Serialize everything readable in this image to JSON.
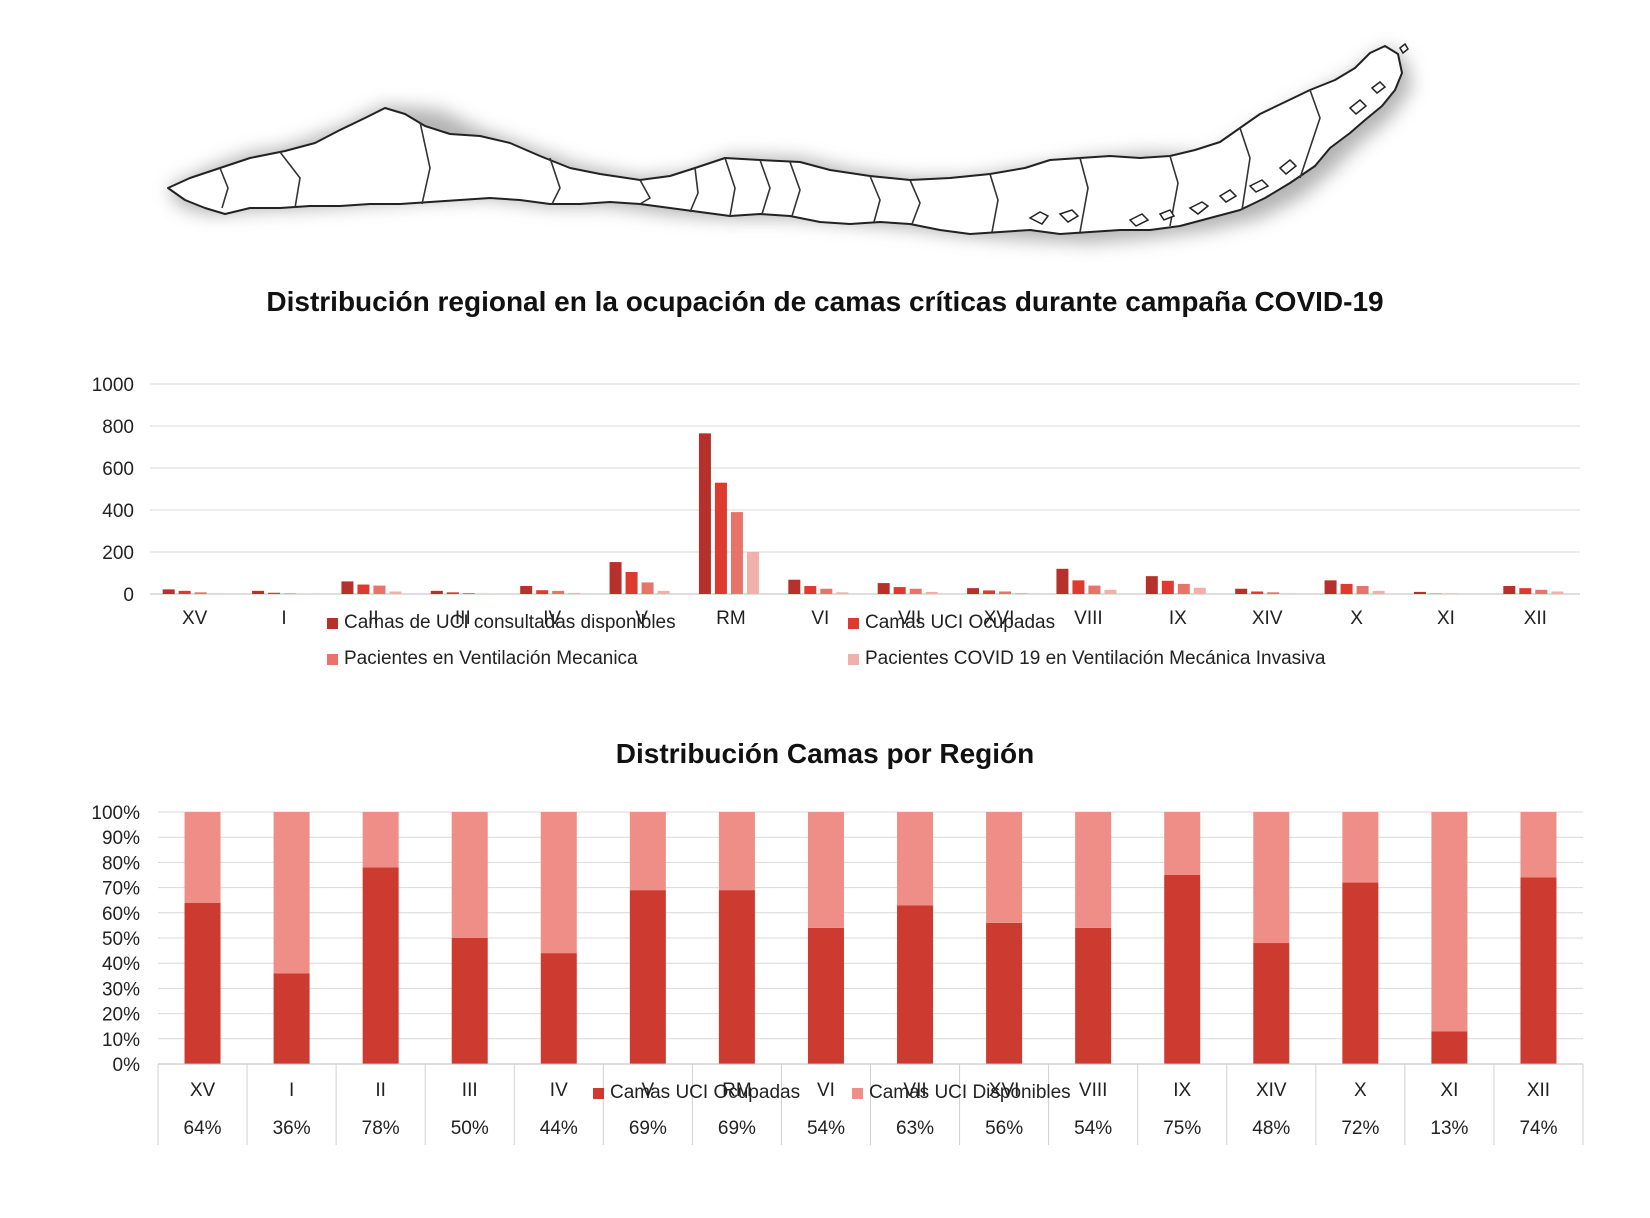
{
  "map": {
    "icon": "chile-regions-map"
  },
  "chart_data": [
    {
      "type": "bar",
      "title": "Distribución regional en la ocupación de camas críticas durante campaña COVID-19",
      "categories": [
        "XV",
        "I",
        "II",
        "III",
        "IV",
        "V",
        "RM",
        "VI",
        "VII",
        "XVI",
        "VIII",
        "IX",
        "XIV",
        "X",
        "XI",
        "XII"
      ],
      "ylim": [
        0,
        1000
      ],
      "yticks": [
        "1000",
        "800",
        "600",
        "400",
        "200",
        "0"
      ],
      "grid": true,
      "legend_position": "bottom",
      "series": [
        {
          "name": "Camas de UCI consultadas disponibles",
          "color": "#b7312c",
          "values": [
            22,
            15,
            60,
            15,
            38,
            152,
            765,
            68,
            52,
            28,
            120,
            85,
            25,
            65,
            10,
            38
          ]
        },
        {
          "name": "Camas UCI Ocupadas",
          "color": "#dd3b30",
          "values": [
            15,
            6,
            45,
            8,
            18,
            105,
            530,
            38,
            33,
            17,
            65,
            63,
            12,
            48,
            2,
            28
          ]
        },
        {
          "name": "Pacientes en Ventilación Mecanica",
          "color": "#e8736b",
          "values": [
            8,
            3,
            40,
            5,
            15,
            55,
            390,
            25,
            25,
            12,
            40,
            48,
            8,
            38,
            1,
            20
          ]
        },
        {
          "name": "Pacientes COVID 19 en Ventilación Mecánica Invasiva",
          "color": "#f2b0aa",
          "values": [
            3,
            1,
            12,
            2,
            5,
            15,
            200,
            8,
            10,
            5,
            20,
            30,
            3,
            15,
            0,
            12
          ]
        }
      ]
    },
    {
      "type": "bar",
      "stacked": "percent",
      "title": "Distribución Camas por Región",
      "categories": [
        "XV",
        "I",
        "II",
        "III",
        "IV",
        "V",
        "RM",
        "VI",
        "VII",
        "XVI",
        "VIII",
        "IX",
        "XIV",
        "X",
        "XI",
        "XII"
      ],
      "yticks": [
        "100%",
        "90%",
        "80%",
        "70%",
        "60%",
        "50%",
        "40%",
        "30%",
        "20%",
        "10%",
        "0%"
      ],
      "ylim": [
        0,
        100
      ],
      "grid": true,
      "legend_position": "bottom",
      "table_labels": [
        "64%",
        "36%",
        "78%",
        "50%",
        "44%",
        "69%",
        "69%",
        "54%",
        "63%",
        "56%",
        "54%",
        "75%",
        "48%",
        "72%",
        "13%",
        "74%"
      ],
      "series": [
        {
          "name": "Camas UCI Ocupadas",
          "color": "#cc3a30",
          "values": [
            64,
            36,
            78,
            50,
            44,
            69,
            69,
            54,
            63,
            56,
            54,
            75,
            48,
            72,
            13,
            74
          ]
        },
        {
          "name": "Camas UCI Disponibles",
          "color": "#ee8e87",
          "values": [
            36,
            64,
            22,
            50,
            56,
            31,
            31,
            46,
            37,
            44,
            46,
            25,
            52,
            28,
            87,
            26
          ]
        }
      ]
    }
  ]
}
